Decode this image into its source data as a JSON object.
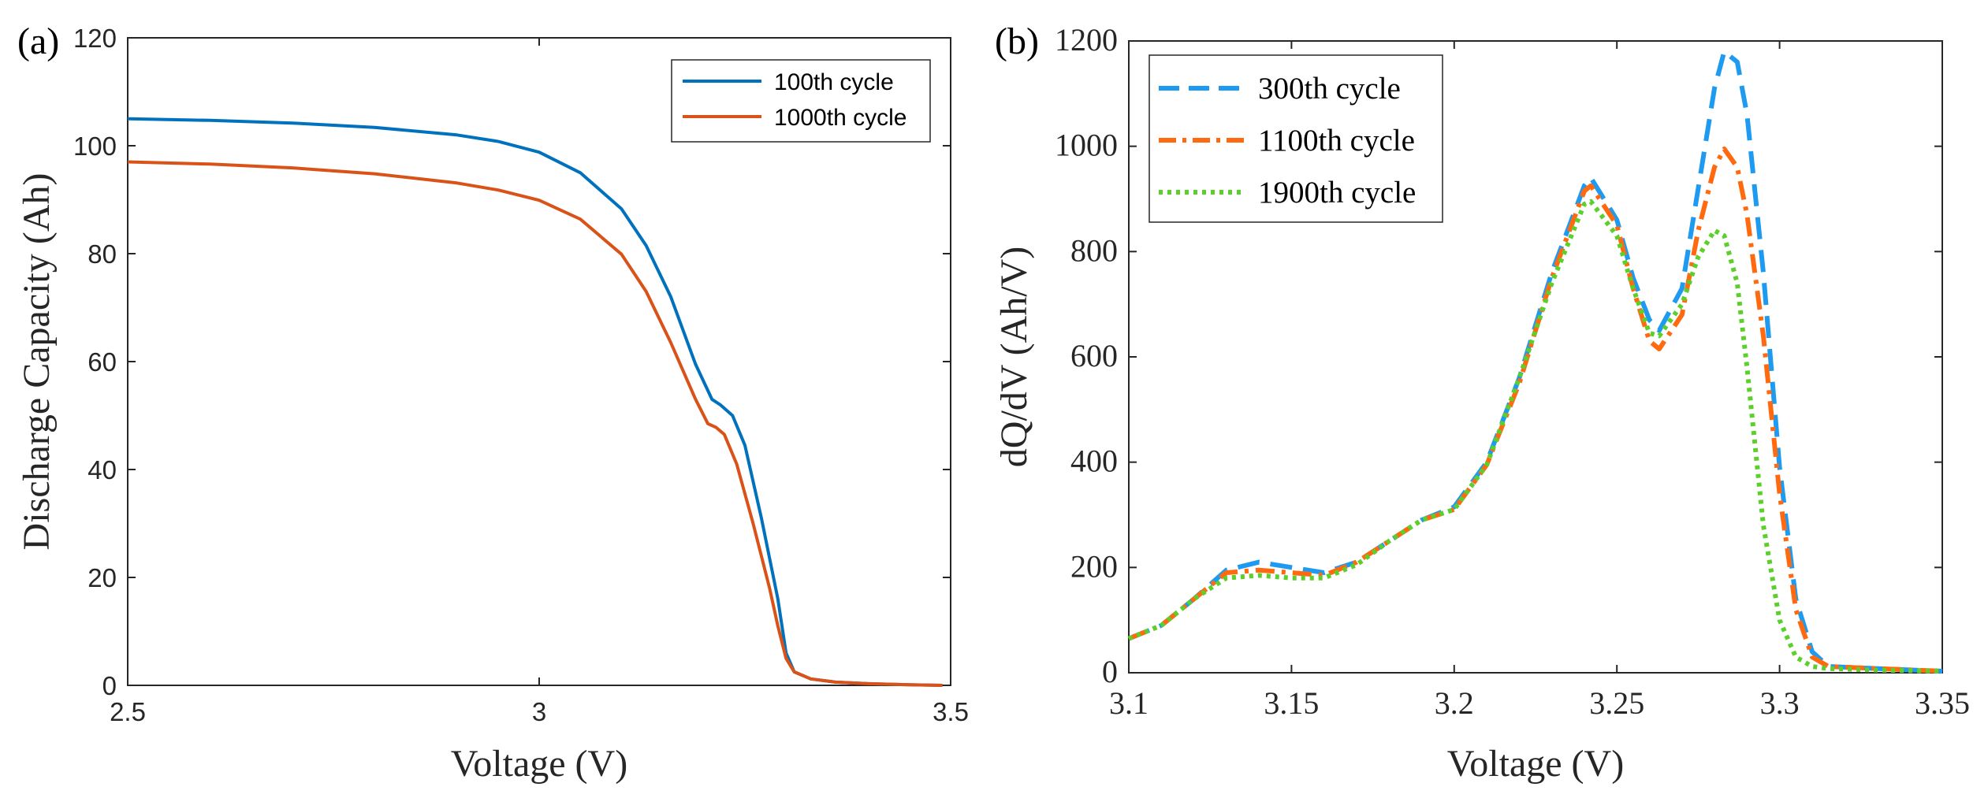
{
  "chart_data": [
    {
      "type": "line",
      "panel_label": "(a)",
      "xlabel": "Voltage (V)",
      "ylabel": "Discharge Capacity (Ah)",
      "xlim": [
        2.5,
        3.5
      ],
      "ylim": [
        0,
        120
      ],
      "xticks": [
        "2.5",
        "3",
        "3.5"
      ],
      "xtick_values": [
        2.5,
        3.0,
        3.5
      ],
      "yticks": [
        "0",
        "20",
        "40",
        "60",
        "80",
        "100",
        "120"
      ],
      "ytick_values": [
        0,
        20,
        40,
        60,
        80,
        100,
        120
      ],
      "legend_position": "top-right",
      "series": [
        {
          "name": "100th cycle",
          "color": "#0072BD",
          "style": "solid",
          "x": [
            2.5,
            2.6,
            2.7,
            2.8,
            2.9,
            2.95,
            3.0,
            3.05,
            3.1,
            3.13,
            3.16,
            3.19,
            3.21,
            3.22,
            3.235,
            3.25,
            3.27,
            3.29,
            3.3,
            3.31,
            3.33,
            3.36,
            3.4,
            3.45,
            3.49
          ],
          "y": [
            105,
            104.7,
            104.2,
            103.4,
            102,
            100.8,
            98.8,
            95,
            88.3,
            81.5,
            72,
            59.5,
            53,
            52,
            50,
            44.5,
            31,
            16,
            6,
            2.5,
            1.2,
            0.6,
            0.3,
            0.1,
            0
          ]
        },
        {
          "name": "1000th cycle",
          "color": "#D95319",
          "style": "solid",
          "x": [
            2.5,
            2.6,
            2.7,
            2.8,
            2.9,
            2.95,
            3.0,
            3.05,
            3.1,
            3.13,
            3.16,
            3.19,
            3.205,
            3.215,
            3.225,
            3.24,
            3.26,
            3.28,
            3.29,
            3.3,
            3.31,
            3.33,
            3.36,
            3.4,
            3.45,
            3.49
          ],
          "y": [
            97,
            96.6,
            95.9,
            94.8,
            93.1,
            91.8,
            89.9,
            86.4,
            79.9,
            73,
            63.5,
            53,
            48.5,
            47.8,
            46.5,
            41,
            30,
            18,
            11,
            5,
            2.5,
            1.2,
            0.6,
            0.3,
            0.1,
            0
          ]
        }
      ]
    },
    {
      "type": "line",
      "panel_label": "(b)",
      "xlabel": "Voltage (V)",
      "ylabel": "dQ/dV (Ah/V)",
      "xlim": [
        3.1,
        3.35
      ],
      "ylim": [
        0,
        1200
      ],
      "xticks": [
        "3.1",
        "3.15",
        "3.2",
        "3.25",
        "3.3",
        "3.35"
      ],
      "xtick_values": [
        3.1,
        3.15,
        3.2,
        3.25,
        3.3,
        3.35
      ],
      "yticks": [
        "0",
        "200",
        "400",
        "600",
        "800",
        "1000",
        "1200"
      ],
      "ytick_values": [
        0,
        200,
        400,
        600,
        800,
        1000,
        1200
      ],
      "legend_position": "top-left",
      "series": [
        {
          "name": "300th cycle",
          "color": "#1E9BF0",
          "style": "dashed",
          "x": [
            3.1,
            3.11,
            3.12,
            3.13,
            3.14,
            3.15,
            3.16,
            3.17,
            3.18,
            3.19,
            3.2,
            3.21,
            3.22,
            3.23,
            3.24,
            3.242,
            3.25,
            3.255,
            3.26,
            3.263,
            3.27,
            3.275,
            3.28,
            3.283,
            3.287,
            3.29,
            3.295,
            3.3,
            3.305,
            3.31,
            3.315,
            3.33,
            3.35
          ],
          "y": [
            65,
            90,
            140,
            195,
            210,
            200,
            190,
            210,
            250,
            290,
            315,
            400,
            560,
            760,
            925,
            940,
            860,
            750,
            670,
            650,
            730,
            920,
            1110,
            1180,
            1160,
            1060,
            760,
            390,
            140,
            40,
            12,
            8,
            3
          ]
        },
        {
          "name": "1100th cycle",
          "color": "#FF6A10",
          "style": "dashdot",
          "x": [
            3.1,
            3.11,
            3.12,
            3.13,
            3.14,
            3.15,
            3.16,
            3.17,
            3.18,
            3.19,
            3.2,
            3.21,
            3.22,
            3.23,
            3.24,
            3.242,
            3.25,
            3.255,
            3.26,
            3.263,
            3.27,
            3.275,
            3.28,
            3.283,
            3.287,
            3.29,
            3.295,
            3.3,
            3.305,
            3.31,
            3.315,
            3.33,
            3.35
          ],
          "y": [
            65,
            90,
            140,
            190,
            195,
            190,
            185,
            210,
            250,
            290,
            310,
            395,
            550,
            750,
            915,
            925,
            850,
            730,
            630,
            615,
            680,
            840,
            960,
            995,
            960,
            870,
            640,
            340,
            120,
            30,
            12,
            8,
            3
          ]
        },
        {
          "name": "1900th cycle",
          "color": "#5CD02A",
          "style": "dotted",
          "x": [
            3.1,
            3.11,
            3.12,
            3.13,
            3.14,
            3.15,
            3.16,
            3.17,
            3.18,
            3.19,
            3.2,
            3.21,
            3.22,
            3.23,
            3.24,
            3.242,
            3.25,
            3.255,
            3.26,
            3.263,
            3.27,
            3.275,
            3.28,
            3.283,
            3.287,
            3.29,
            3.295,
            3.3,
            3.305,
            3.31,
            3.315,
            3.33,
            3.35
          ],
          "y": [
            65,
            90,
            140,
            180,
            185,
            180,
            180,
            205,
            250,
            290,
            310,
            395,
            560,
            740,
            890,
            895,
            830,
            730,
            645,
            640,
            700,
            790,
            840,
            830,
            740,
            580,
            280,
            100,
            30,
            12,
            8,
            5,
            3
          ]
        }
      ]
    }
  ]
}
